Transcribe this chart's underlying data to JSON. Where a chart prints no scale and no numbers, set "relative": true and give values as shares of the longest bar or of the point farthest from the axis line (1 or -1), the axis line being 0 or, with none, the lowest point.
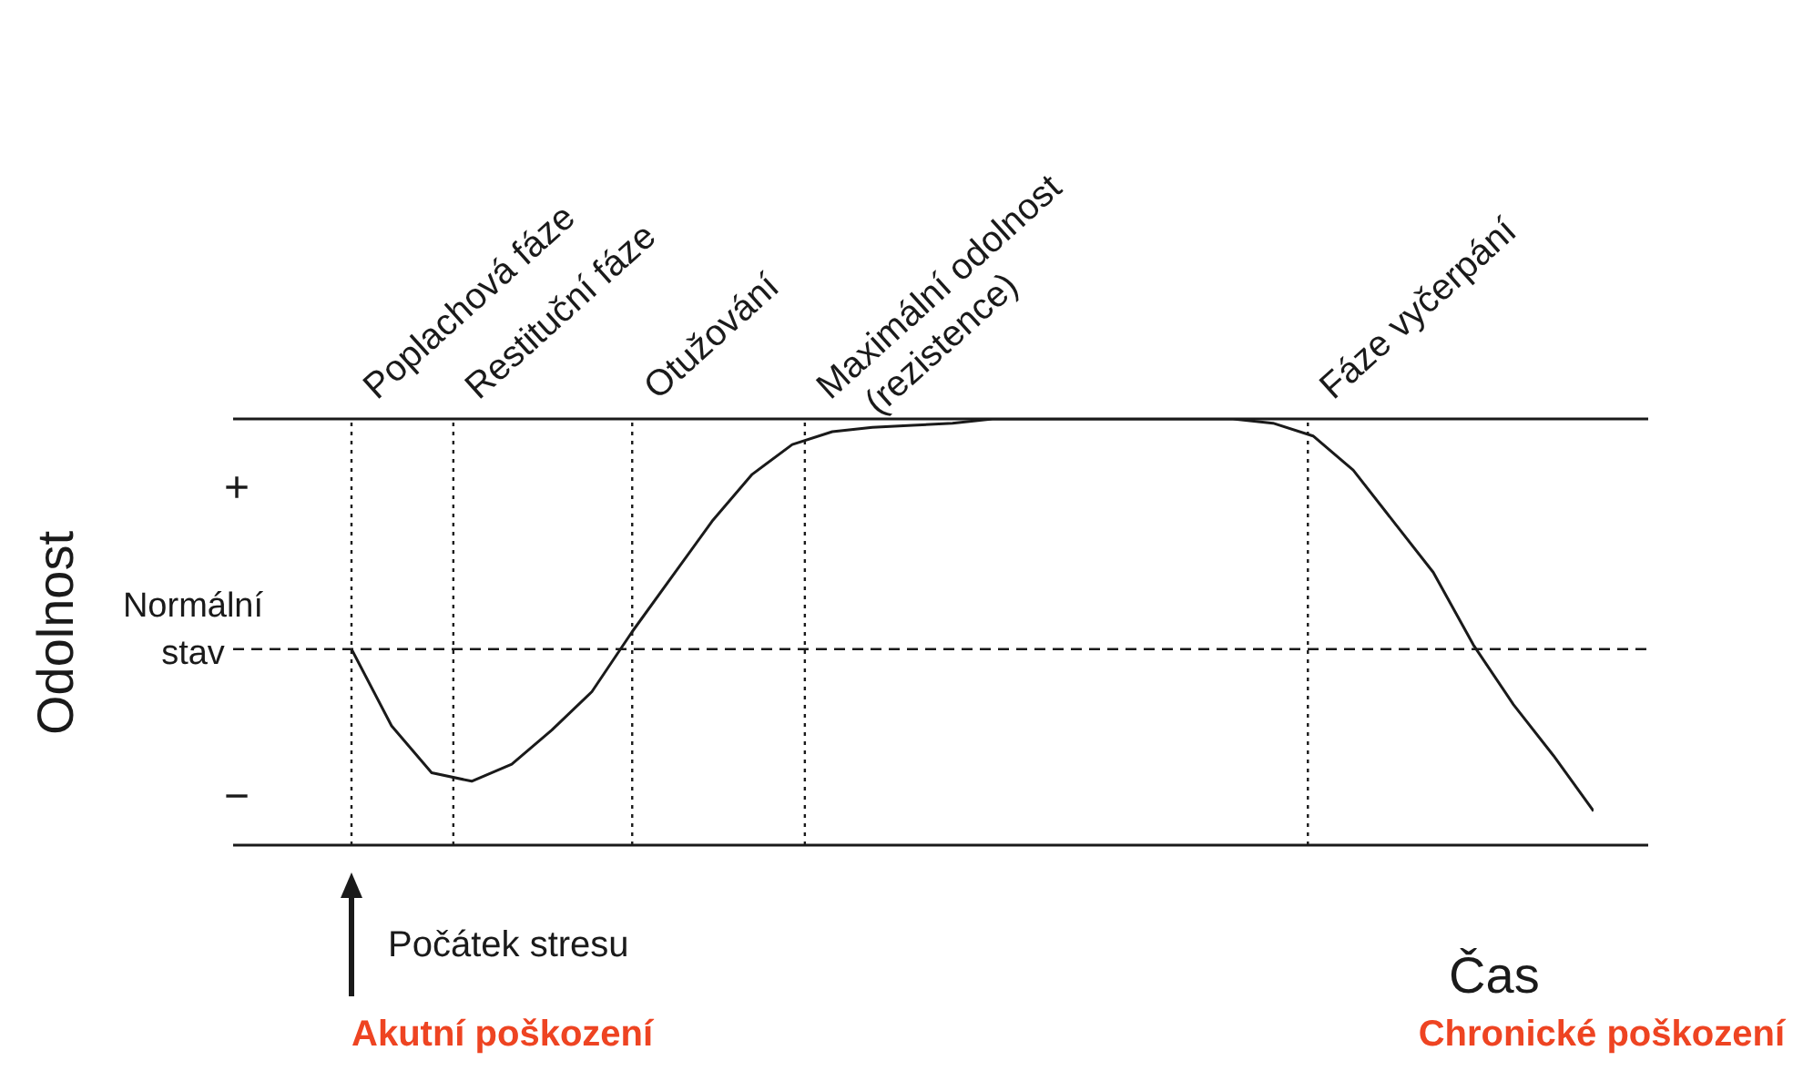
{
  "chart_data": {
    "type": "line",
    "relative": true,
    "xlabel": "Čas",
    "ylabel": "Odolnost",
    "categories": [
      null,
      null,
      null,
      null,
      null,
      null,
      null,
      null,
      null,
      null,
      null,
      null,
      null,
      null,
      null,
      null,
      null,
      null,
      null,
      null,
      null,
      null,
      null,
      null,
      null,
      null,
      null,
      null,
      null,
      null,
      null,
      null
    ],
    "marker": "none",
    "line_style": "solid",
    "series": [
      {
        "color": "#1a1a1a",
        "values": [
          0.46,
          0.28,
          0.17,
          0.15,
          0.19,
          0.27,
          0.36,
          0.5,
          0.63,
          0.76,
          0.87,
          0.94,
          0.97,
          0.98,
          0.985,
          0.99,
          1,
          1,
          1,
          1,
          1,
          1,
          1,
          0.99,
          0.96,
          0.88,
          0.76,
          0.64,
          0.47,
          0.33,
          0.21,
          0.08
        ]
      }
    ],
    "annotations": [
      "+",
      "−",
      "Normální stav",
      "Poplachová fáze",
      "Restituční fáze",
      "Otužování",
      "Maximální odolnost\n(rezistence)",
      "Fáze vyčerpání",
      "Počátek stresu",
      "Akutní poškození",
      "Chronické poškození"
    ]
  }
}
